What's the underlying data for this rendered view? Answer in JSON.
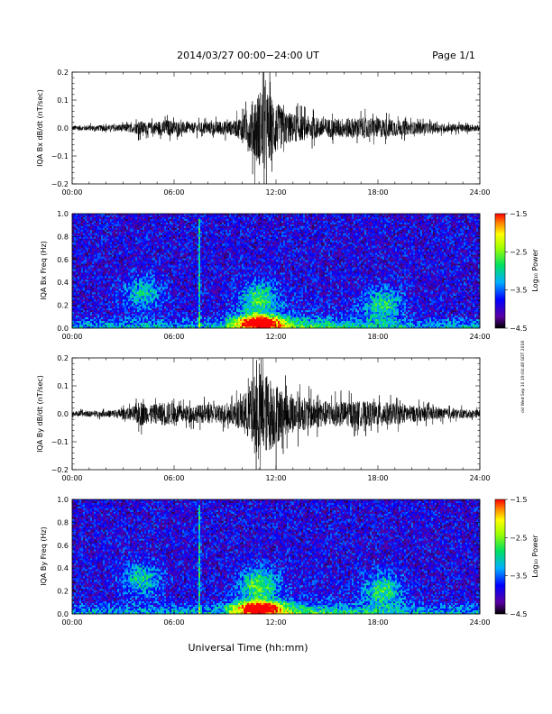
{
  "header": {
    "title": "2014/03/27  00:00−24:00 UT",
    "page": "Page 1/1"
  },
  "footer": {
    "xlabel": "Universal Time (hh:mm)",
    "side_stamp": "ckl Wed Sep 10 19:04:48 GDT 2018"
  },
  "chart_data": [
    {
      "type": "line",
      "ylabel": "IQA Bx dB/dt (nT/sec)",
      "xlim": [
        0,
        24
      ],
      "ylim": [
        -0.2,
        0.2
      ],
      "xticks": [
        "00:00",
        "06:00",
        "12:00",
        "18:00",
        "24:00"
      ],
      "yticks": [
        "0.2",
        "0.1",
        "0.0",
        "−0.1",
        "−0.2"
      ],
      "envelope": [
        {
          "t": 0,
          "amp": 0.012
        },
        {
          "t": 2,
          "amp": 0.014
        },
        {
          "t": 3.5,
          "amp": 0.02
        },
        {
          "t": 4,
          "amp": 0.035
        },
        {
          "t": 4.5,
          "amp": 0.025
        },
        {
          "t": 5.5,
          "amp": 0.04
        },
        {
          "t": 6,
          "amp": 0.035
        },
        {
          "t": 7,
          "amp": 0.025
        },
        {
          "t": 8,
          "amp": 0.03
        },
        {
          "t": 9.5,
          "amp": 0.035
        },
        {
          "t": 10.2,
          "amp": 0.07
        },
        {
          "t": 10.8,
          "amp": 0.16
        },
        {
          "t": 11.2,
          "amp": 0.2
        },
        {
          "t": 11.8,
          "amp": 0.15
        },
        {
          "t": 12.5,
          "amp": 0.08
        },
        {
          "t": 13.5,
          "amp": 0.06
        },
        {
          "t": 15,
          "amp": 0.045
        },
        {
          "t": 17,
          "amp": 0.05
        },
        {
          "t": 18.5,
          "amp": 0.045
        },
        {
          "t": 20,
          "amp": 0.03
        },
        {
          "t": 22,
          "amp": 0.02
        },
        {
          "t": 24,
          "amp": 0.015
        }
      ]
    },
    {
      "type": "heatmap",
      "ylabel": "IQA Bx Freq (Hz)",
      "xlim": [
        0,
        24
      ],
      "ylim": [
        0,
        1.0
      ],
      "xticks": [
        "00:00",
        "06:00",
        "12:00",
        "18:00",
        "24:00"
      ],
      "yticks": [
        "1.0",
        "0.8",
        "0.6",
        "0.4",
        "0.2",
        "0.0"
      ],
      "colorbar": {
        "label": "Log₁₀ Power",
        "range": [
          -4.5,
          -1.5
        ],
        "ticks": [
          "−1.5",
          "−2.5",
          "−3.5",
          "−4.5"
        ]
      },
      "features": [
        {
          "t": 11,
          "f": 0.05,
          "power": -1.6
        },
        {
          "t": 11,
          "f": 0.25,
          "power": -2.8
        },
        {
          "t": 4.1,
          "f": 0.3,
          "power": -3.1
        },
        {
          "t": 7.5,
          "f": 0.6,
          "power": -3.0
        },
        {
          "t": 18.3,
          "f": 0.2,
          "power": -2.9
        }
      ]
    },
    {
      "type": "line",
      "ylabel": "IQA By dB/dt (nT/sec)",
      "xlim": [
        0,
        24
      ],
      "ylim": [
        -0.2,
        0.2
      ],
      "xticks": [
        "00:00",
        "06:00",
        "12:00",
        "18:00",
        "24:00"
      ],
      "yticks": [
        "0.2",
        "0.1",
        "0.0",
        "−0.1",
        "−0.2"
      ],
      "envelope": [
        {
          "t": 0,
          "amp": 0.012
        },
        {
          "t": 2,
          "amp": 0.015
        },
        {
          "t": 3.5,
          "amp": 0.03
        },
        {
          "t": 4,
          "amp": 0.06
        },
        {
          "t": 4.6,
          "amp": 0.04
        },
        {
          "t": 5.5,
          "amp": 0.06
        },
        {
          "t": 6.5,
          "amp": 0.04
        },
        {
          "t": 8,
          "amp": 0.045
        },
        {
          "t": 9.5,
          "amp": 0.05
        },
        {
          "t": 10.2,
          "amp": 0.1
        },
        {
          "t": 10.8,
          "amp": 0.2
        },
        {
          "t": 11.3,
          "amp": 0.2
        },
        {
          "t": 11.9,
          "amp": 0.16
        },
        {
          "t": 12.5,
          "amp": 0.1
        },
        {
          "t": 13.5,
          "amp": 0.08
        },
        {
          "t": 15,
          "amp": 0.06
        },
        {
          "t": 17,
          "amp": 0.06
        },
        {
          "t": 18.5,
          "amp": 0.055
        },
        {
          "t": 20,
          "amp": 0.04
        },
        {
          "t": 22,
          "amp": 0.025
        },
        {
          "t": 24,
          "amp": 0.018
        }
      ]
    },
    {
      "type": "heatmap",
      "ylabel": "IQA By Freq (Hz)",
      "xlim": [
        0,
        24
      ],
      "ylim": [
        0,
        1.0
      ],
      "xticks": [
        "00:00",
        "06:00",
        "12:00",
        "18:00",
        "24:00"
      ],
      "yticks": [
        "1.0",
        "0.8",
        "0.6",
        "0.4",
        "0.2",
        "0.0"
      ],
      "colorbar": {
        "label": "Log₁₀ Power",
        "range": [
          -4.5,
          -1.5
        ],
        "ticks": [
          "−1.5",
          "−2.5",
          "−3.5",
          "−4.5"
        ]
      },
      "features": [
        {
          "t": 11,
          "f": 0.05,
          "power": -1.6
        },
        {
          "t": 11,
          "f": 0.25,
          "power": -2.7
        },
        {
          "t": 4.1,
          "f": 0.3,
          "power": -3.0
        },
        {
          "t": 7.5,
          "f": 0.6,
          "power": -3.0
        },
        {
          "t": 18.3,
          "f": 0.2,
          "power": -2.8
        }
      ]
    }
  ]
}
